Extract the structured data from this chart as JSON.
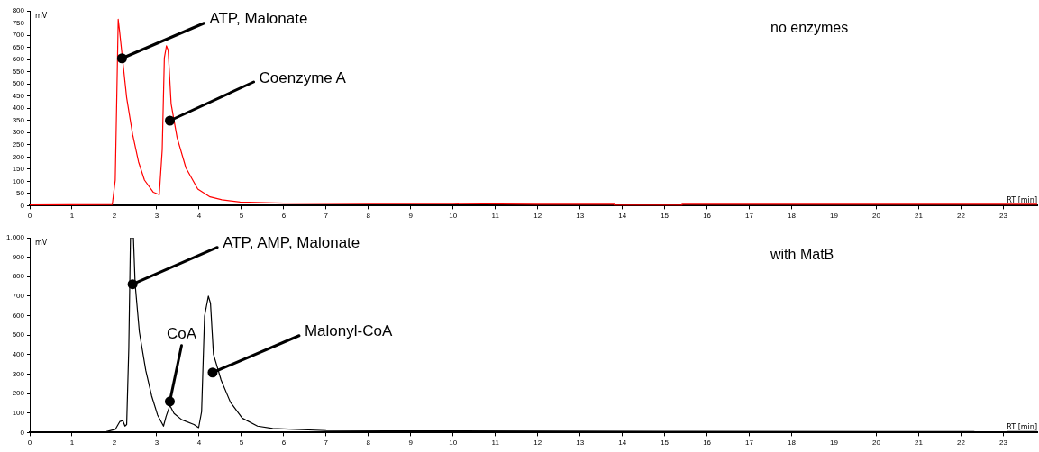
{
  "chart_data": [
    {
      "type": "line",
      "xlabel": "RT [min]",
      "ylabel": "mV",
      "xlim": [
        0,
        23.8
      ],
      "xticks": [
        0,
        1,
        2,
        3,
        4,
        5,
        6,
        7,
        8,
        9,
        10,
        11,
        12,
        13,
        14,
        15,
        16,
        17,
        18,
        19,
        20,
        21,
        22,
        23
      ],
      "ylim": [
        0,
        800
      ],
      "yticks": [
        0,
        50,
        100,
        150,
        200,
        250,
        300,
        350,
        400,
        450,
        500,
        550,
        600,
        650,
        700,
        750,
        800
      ],
      "legend": false,
      "grid": false,
      "marker": "none",
      "line_style": "solid",
      "series": [
        {
          "color": "#ff0000",
          "x": [
            0,
            1.95,
            2.02,
            2.06,
            2.09,
            2.12,
            2.19,
            2.29,
            2.43,
            2.57,
            2.71,
            2.92,
            3.06,
            3.13,
            3.18,
            3.23,
            3.27,
            3.34,
            3.48,
            3.69,
            3.97,
            4.26,
            4.54,
            4.97,
            6,
            8,
            10,
            12,
            13.8,
            13.81,
            15.4,
            15.41,
            18,
            20,
            22,
            23.8
          ],
          "values": [
            3,
            5,
            105,
            481,
            765,
            720,
            606,
            443,
            293,
            180,
            105,
            55,
            45,
            230,
            606,
            656,
            638,
            418,
            280,
            155,
            68,
            36,
            24,
            15,
            10,
            8,
            8,
            6,
            6,
            2,
            2,
            6,
            6,
            6,
            6,
            6
          ]
        }
      ],
      "annotations": [
        {
          "text": "ATP, Malonate",
          "x": 2.18,
          "y": 605
        },
        {
          "text": "Coenzyme A",
          "x": 3.31,
          "y": 349
        },
        "no enzymes"
      ]
    },
    {
      "type": "line",
      "xlabel": "RT [min]",
      "ylabel": "mV",
      "xlim": [
        0,
        23.8
      ],
      "xticks": [
        0,
        1,
        2,
        3,
        4,
        5,
        6,
        7,
        8,
        9,
        10,
        11,
        12,
        13,
        14,
        15,
        16,
        17,
        18,
        19,
        20,
        21,
        22,
        23
      ],
      "ylim": [
        0,
        1000
      ],
      "yticks": [
        0,
        100,
        200,
        300,
        400,
        500,
        600,
        700,
        800,
        900,
        {
          "value": 1000,
          "label": "1,000"
        }
      ],
      "legend": false,
      "grid": false,
      "marker": "none",
      "line_style": "solid",
      "series": [
        {
          "color": "#000000",
          "x": [
            0,
            1.81,
            2.02,
            2.13,
            2.2,
            2.25,
            2.29,
            2.34,
            2.38,
            2.45,
            2.49,
            2.59,
            2.74,
            2.88,
            3.02,
            3.16,
            3.22,
            3.31,
            3.41,
            3.59,
            3.88,
            3.99,
            4.06,
            4.13,
            4.22,
            4.27,
            4.34,
            4.52,
            4.74,
            5.02,
            5.38,
            5.74,
            7,
            10,
            15,
            20,
            22.3,
            22.4,
            23,
            23.1,
            23.8
          ],
          "values": [
            0,
            5,
            16,
            57,
            61,
            33,
            41,
            434,
            1000,
            1000,
            762,
            516,
            320,
            188,
            90,
            33,
            82,
            139,
            98,
            66,
            41,
            25,
            107,
            598,
            700,
            664,
            402,
            270,
            156,
            74,
            33,
            21,
            10,
            8,
            6,
            5,
            5,
            0,
            0,
            5,
            5
          ]
        }
      ],
      "annotations": [
        {
          "text": "ATP, AMP, Malonate",
          "x": 2.43,
          "y": 761
        },
        {
          "text": "CoA",
          "x": 3.31,
          "y": 160
        },
        {
          "text": "Malonyl-CoA",
          "x": 4.32,
          "y": 308
        },
        "with MatB"
      ]
    }
  ]
}
